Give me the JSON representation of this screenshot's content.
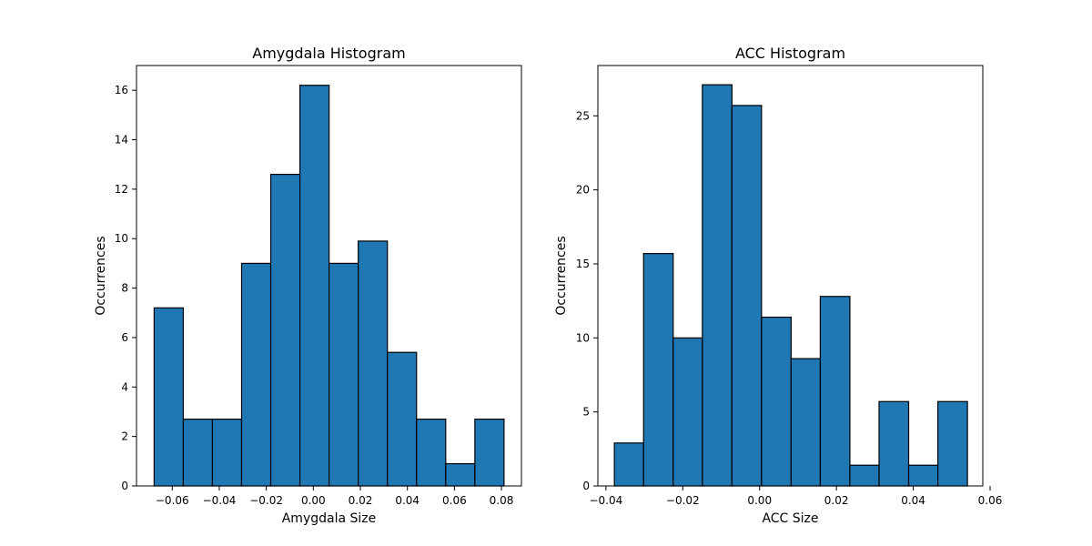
{
  "colors": {
    "bar_fill": "#1f77b4",
    "bar_edge": "#000000",
    "background": "#ffffff"
  },
  "chart_data": [
    {
      "type": "bar",
      "title": "Amygdala Histogram",
      "xlabel": "Amygdala Size",
      "ylabel": "Occurrences",
      "bin_edges": [
        -0.0677,
        -0.0553,
        -0.0429,
        -0.0305,
        -0.0181,
        -0.0057,
        0.0067,
        0.0191,
        0.0315,
        0.0439,
        0.0563,
        0.0687,
        0.0811
      ],
      "values": [
        7.2,
        2.7,
        2.7,
        9.0,
        12.6,
        16.2,
        9.0,
        9.9,
        5.4,
        2.7,
        0.9,
        2.7
      ],
      "xlim": [
        -0.0752,
        0.0885
      ],
      "ylim": [
        0,
        17.0
      ],
      "xticks": [
        -0.06,
        -0.04,
        -0.02,
        0.0,
        0.02,
        0.04,
        0.06,
        0.08
      ],
      "xtick_labels": [
        "−0.06",
        "−0.04",
        "−0.02",
        "0.00",
        "0.02",
        "0.04",
        "0.06",
        "0.08"
      ],
      "yticks": [
        0,
        2,
        4,
        6,
        8,
        10,
        12,
        14,
        16
      ],
      "ytick_labels": [
        "0",
        "2",
        "4",
        "6",
        "8",
        "10",
        "12",
        "14",
        "16"
      ],
      "grid": false,
      "legend": "none"
    },
    {
      "type": "bar",
      "title": "ACC Histogram",
      "xlabel": "ACC Size",
      "ylabel": "Occurrences",
      "bin_edges": [
        -0.0378,
        -0.0302,
        -0.0225,
        -0.0149,
        -0.0072,
        0.0005,
        0.0082,
        0.0158,
        0.0235,
        0.0311,
        0.0388,
        0.0464,
        0.0541
      ],
      "values": [
        2.9,
        15.7,
        10.0,
        27.1,
        25.7,
        11.4,
        8.6,
        12.8,
        1.4,
        5.7,
        1.4,
        5.7
      ],
      "xlim": [
        -0.0421,
        0.0581
      ],
      "ylim": [
        0,
        28.4
      ],
      "xticks": [
        -0.04,
        -0.02,
        0.0,
        0.02,
        0.04,
        0.06
      ],
      "xtick_labels": [
        "−0.04",
        "−0.02",
        "0.00",
        "0.02",
        "0.04",
        "0.06"
      ],
      "yticks": [
        0,
        5,
        10,
        15,
        20,
        25
      ],
      "ytick_labels": [
        "0",
        "5",
        "10",
        "15",
        "20",
        "25"
      ],
      "grid": false,
      "legend": "none"
    }
  ]
}
